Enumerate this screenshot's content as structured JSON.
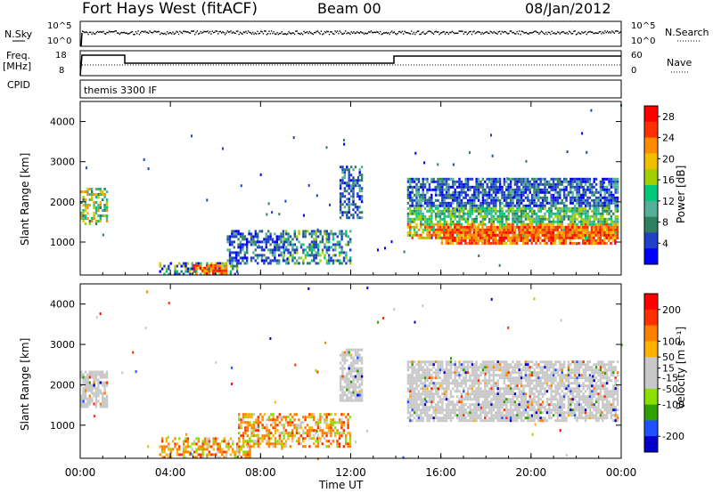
{
  "header": {
    "station": "Fort Hays West (fitACF)",
    "beam": "Beam 00",
    "date": "08/Jan/2012"
  },
  "top_panels": {
    "nsky_label": "N.Sky",
    "nsky_ticks": [
      "10^5",
      "10^0"
    ],
    "nsearch_ticks": [
      "10^5",
      "10^0"
    ],
    "nsearch_label": "N.Search",
    "freq_label_1": "Freq.",
    "freq_label_2": "[MHz]",
    "freq_ticks": [
      "18",
      "8"
    ],
    "nave_ticks": [
      "60",
      "0"
    ],
    "nave_label": "Nave",
    "cpid_label": "CPID",
    "cpid_value": "themis 3300 IF"
  },
  "colors": {
    "power": [
      "#0000ff",
      "#2040c8",
      "#2f8060",
      "#55b09a",
      "#00c878",
      "#a0d000",
      "#f0c000",
      "#ff8c00",
      "#ff3000",
      "#ff0000"
    ],
    "velocity": [
      "#0000c8",
      "#2050ff",
      "#30a000",
      "#8ce000",
      "#c8c8c8",
      "#c8c8c8",
      "#ffb000",
      "#ff8000",
      "#ff3000",
      "#ff0000"
    ]
  },
  "chart_data": [
    {
      "type": "heatmap",
      "panel": "power",
      "xlabel": "Time UT",
      "ylabel": "Slant Range [km]",
      "x_ticks": [
        "00:00",
        "04:00",
        "08:00",
        "12:00",
        "16:00",
        "20:00",
        "00:00"
      ],
      "y_ticks": [
        1000,
        2000,
        3000,
        4000
      ],
      "xlim_hours": [
        0,
        24
      ],
      "ylim_km": [
        180,
        4500
      ],
      "colorbar_label": "Power [dB]",
      "colorbar_ticks": [
        4,
        8,
        12,
        16,
        20,
        24,
        28
      ],
      "colorbar_range": [
        0,
        30
      ],
      "regions": [
        {
          "t0": 0.0,
          "t1": 1.2,
          "r0": 1450,
          "r1": 2350,
          "level": "med-high"
        },
        {
          "t0": 3.5,
          "t1": 7.0,
          "r0": 180,
          "r1": 500,
          "level": "mixed"
        },
        {
          "t0": 5.0,
          "t1": 6.5,
          "r0": 250,
          "r1": 450,
          "level": "high"
        },
        {
          "t0": 6.5,
          "t1": 9.0,
          "r0": 500,
          "r1": 1300,
          "level": "low"
        },
        {
          "t0": 9.0,
          "t1": 12.0,
          "r0": 500,
          "r1": 1300,
          "level": "low-med"
        },
        {
          "t0": 11.5,
          "t1": 12.5,
          "r0": 1600,
          "r1": 2900,
          "level": "low"
        },
        {
          "t0": 14.5,
          "t1": 23.8,
          "r0": 1100,
          "r1": 2600,
          "level": "layered"
        },
        {
          "t0": 16.0,
          "t1": 23.8,
          "r0": 1000,
          "r1": 1400,
          "level": "high"
        }
      ]
    },
    {
      "type": "heatmap",
      "panel": "velocity",
      "xlabel": "Time UT",
      "ylabel": "Slant Range [km]",
      "x_ticks": [
        "00:00",
        "04:00",
        "08:00",
        "12:00",
        "16:00",
        "20:00",
        "00:00"
      ],
      "y_ticks": [
        1000,
        2000,
        3000,
        4000
      ],
      "xlim_hours": [
        0,
        24
      ],
      "ylim_km": [
        180,
        4500
      ],
      "colorbar_label": "Velocity [m s⁻¹]",
      "colorbar_ticks": [
        200,
        100,
        50,
        15,
        -15,
        -50,
        -100,
        -200
      ],
      "colorbar_range": [
        -250,
        250
      ],
      "regions": [
        {
          "t0": 0.0,
          "t1": 1.2,
          "r0": 1450,
          "r1": 2350,
          "level": "ground"
        },
        {
          "t0": 3.5,
          "t1": 7.5,
          "r0": 180,
          "r1": 700,
          "level": "negative"
        },
        {
          "t0": 7.0,
          "t1": 12.0,
          "r0": 500,
          "r1": 1300,
          "level": "negative"
        },
        {
          "t0": 11.5,
          "t1": 12.5,
          "r0": 1600,
          "r1": 2900,
          "level": "ground"
        },
        {
          "t0": 14.5,
          "t1": 23.8,
          "r0": 1100,
          "r1": 2600,
          "level": "ground"
        }
      ]
    }
  ]
}
